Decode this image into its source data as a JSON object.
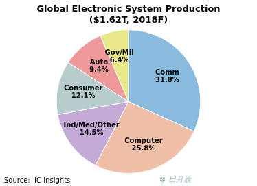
{
  "chart_data": {
    "type": "pie",
    "title": "Global Electronic System Production\n($1.62T, 2018F)",
    "categories": [
      "Comm",
      "Computer",
      "Ind/Med/Other",
      "Consumer",
      "Auto",
      "Gov/Mil"
    ],
    "values": [
      31.8,
      25.8,
      14.5,
      12.1,
      9.4,
      6.4
    ],
    "value_labels": [
      "31.8%",
      "25.8%",
      "14.5%",
      "12.1%",
      "9.4%",
      "6.4%"
    ],
    "data_labels": true,
    "colors": [
      "#88bbdd",
      "#f0bfa8",
      "#c5aad8",
      "#b8cece",
      "#ee9999",
      "#e8e888"
    ],
    "legend": false,
    "annotations": [
      "Source:  IC Insights",
      "⊗ 日月辰"
    ]
  }
}
